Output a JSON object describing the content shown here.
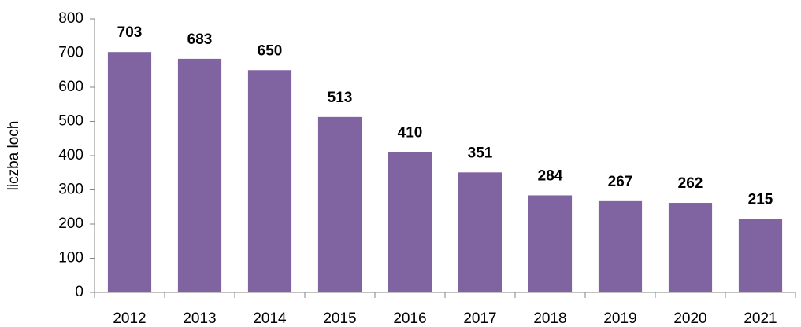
{
  "chart_data": {
    "type": "bar",
    "y_label": "liczba loch",
    "categories": [
      "2012",
      "2013",
      "2014",
      "2015",
      "2016",
      "2017",
      "2018",
      "2019",
      "2020",
      "2021"
    ],
    "values": [
      703,
      683,
      650,
      513,
      410,
      351,
      284,
      267,
      262,
      215
    ],
    "color": "#8064a2",
    "ylim": [
      0,
      800
    ],
    "yticks": [
      0,
      100,
      200,
      300,
      400,
      500,
      600,
      700,
      800
    ],
    "grid": false
  }
}
